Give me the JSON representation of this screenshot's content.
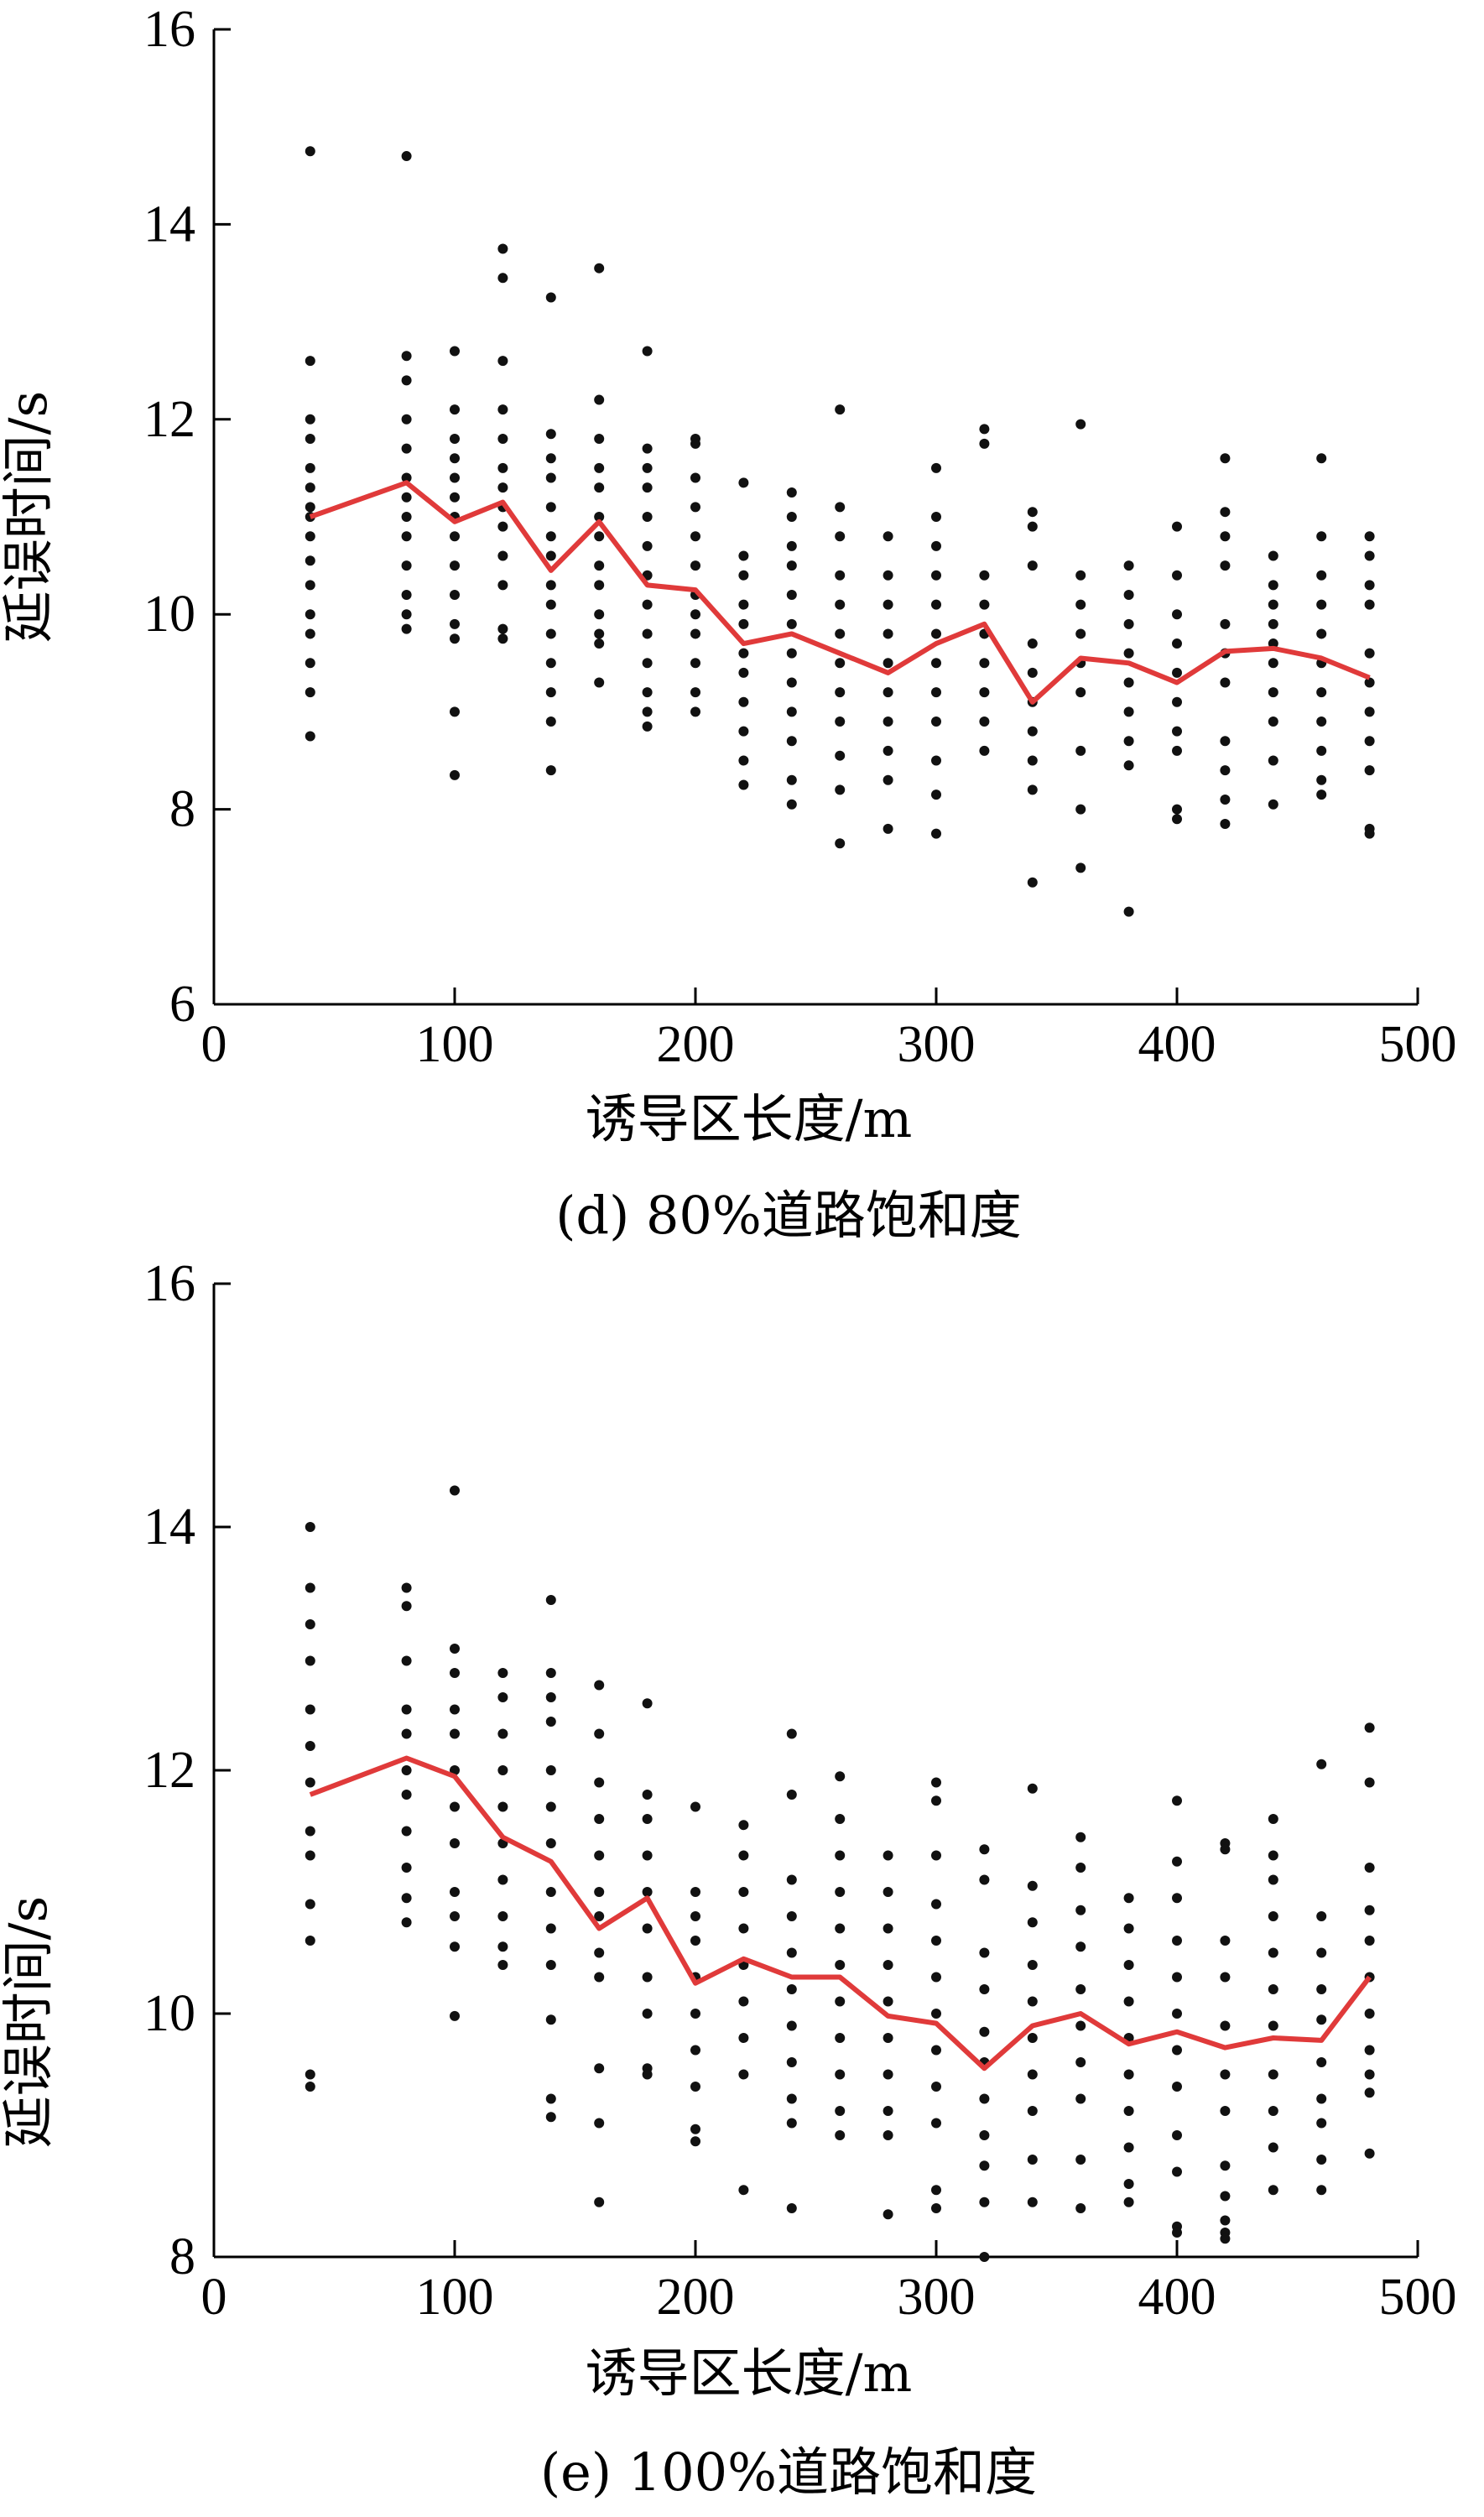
{
  "chart_data": [
    {
      "type": "scatter",
      "caption": "(d)  80%道路饱和度",
      "xlabel": "诱导区长度/m",
      "ylabel": "延误时间/s",
      "xlim": [
        0,
        500
      ],
      "ylim": [
        6,
        16
      ],
      "xticks": [
        0,
        100,
        200,
        300,
        400,
        500
      ],
      "yticks": [
        6,
        8,
        10,
        12,
        14,
        16
      ],
      "colors": {
        "points": "#111111",
        "line": "#e03a3a"
      },
      "line": {
        "x": [
          40,
          80,
          100,
          120,
          140,
          160,
          180,
          200,
          220,
          240,
          260,
          280,
          300,
          320,
          340,
          360,
          380,
          400,
          420,
          440,
          460,
          480
        ],
        "y": [
          11.0,
          11.35,
          10.95,
          11.15,
          10.45,
          10.95,
          10.3,
          10.25,
          9.7,
          9.8,
          9.6,
          9.4,
          9.7,
          9.9,
          9.1,
          9.55,
          9.5,
          9.3,
          9.62,
          9.65,
          9.55,
          9.35
        ]
      },
      "scatter": [
        {
          "x": 40,
          "y": [
            14.75,
            12.6,
            12.0,
            11.8,
            11.5,
            11.3,
            11.1,
            11.0,
            10.8,
            10.55,
            10.3,
            10.0,
            9.8,
            9.5,
            9.2,
            8.75
          ]
        },
        {
          "x": 80,
          "y": [
            14.7,
            12.65,
            12.4,
            12.0,
            11.7,
            11.4,
            11.2,
            11.0,
            10.8,
            10.5,
            10.2,
            10.0,
            9.85
          ]
        },
        {
          "x": 100,
          "y": [
            12.7,
            12.1,
            11.8,
            11.6,
            11.4,
            11.2,
            11.0,
            10.8,
            10.5,
            10.2,
            9.9,
            9.75,
            9.0,
            8.35
          ]
        },
        {
          "x": 120,
          "y": [
            13.75,
            13.45,
            12.6,
            12.1,
            11.8,
            11.5,
            11.3,
            11.1,
            10.9,
            10.6,
            10.3,
            9.85,
            9.75
          ]
        },
        {
          "x": 140,
          "y": [
            13.25,
            11.85,
            11.6,
            11.4,
            11.1,
            10.8,
            10.6,
            10.3,
            10.1,
            9.8,
            9.5,
            9.2,
            8.9,
            8.4
          ]
        },
        {
          "x": 160,
          "y": [
            13.55,
            12.2,
            11.8,
            11.5,
            11.3,
            11.0,
            10.8,
            10.5,
            10.3,
            10.0,
            9.8,
            9.7,
            9.3
          ]
        },
        {
          "x": 180,
          "y": [
            12.7,
            11.7,
            11.5,
            11.3,
            11.0,
            10.7,
            10.4,
            10.1,
            9.8,
            9.5,
            9.2,
            9.0,
            8.85
          ]
        },
        {
          "x": 200,
          "y": [
            11.8,
            11.75,
            11.4,
            11.1,
            10.8,
            10.5,
            10.2,
            10.0,
            9.8,
            9.5,
            9.2,
            9.0
          ]
        },
        {
          "x": 220,
          "y": [
            11.35,
            10.6,
            10.4,
            10.1,
            9.9,
            9.6,
            9.4,
            9.1,
            8.8,
            8.5,
            8.25
          ]
        },
        {
          "x": 240,
          "y": [
            11.25,
            11.0,
            10.7,
            10.5,
            10.2,
            9.9,
            9.6,
            9.3,
            9.0,
            8.7,
            8.3,
            8.05
          ]
        },
        {
          "x": 260,
          "y": [
            12.1,
            11.1,
            10.8,
            10.4,
            10.1,
            9.8,
            9.5,
            9.2,
            8.9,
            8.55,
            8.2,
            7.65
          ]
        },
        {
          "x": 280,
          "y": [
            10.8,
            10.4,
            10.1,
            9.8,
            9.5,
            9.2,
            8.9,
            8.6,
            8.3,
            7.8
          ]
        },
        {
          "x": 300,
          "y": [
            11.5,
            11.0,
            10.7,
            10.4,
            10.1,
            9.8,
            9.5,
            9.2,
            8.9,
            8.5,
            8.15,
            7.75
          ]
        },
        {
          "x": 320,
          "y": [
            11.9,
            11.75,
            10.4,
            10.1,
            9.8,
            9.5,
            9.2,
            8.9,
            8.6
          ]
        },
        {
          "x": 340,
          "y": [
            11.05,
            10.9,
            10.5,
            9.7,
            9.4,
            9.1,
            8.8,
            8.5,
            8.2,
            7.25
          ]
        },
        {
          "x": 360,
          "y": [
            11.95,
            10.4,
            10.1,
            9.8,
            9.5,
            9.2,
            8.6,
            8.0,
            7.4
          ]
        },
        {
          "x": 380,
          "y": [
            10.5,
            10.2,
            9.9,
            9.6,
            9.3,
            9.0,
            8.7,
            8.45,
            6.95
          ]
        },
        {
          "x": 400,
          "y": [
            10.9,
            10.4,
            10.0,
            9.7,
            9.4,
            9.1,
            8.8,
            8.6,
            8.0,
            7.9
          ]
        },
        {
          "x": 420,
          "y": [
            11.6,
            11.05,
            10.8,
            10.5,
            9.9,
            9.6,
            9.3,
            8.7,
            8.4,
            8.1,
            7.85
          ]
        },
        {
          "x": 440,
          "y": [
            10.6,
            10.3,
            10.1,
            9.9,
            9.7,
            9.5,
            9.2,
            8.9,
            8.5,
            8.05
          ]
        },
        {
          "x": 460,
          "y": [
            11.6,
            10.8,
            10.4,
            10.1,
            9.8,
            9.5,
            9.2,
            8.9,
            8.6,
            8.3,
            8.15
          ]
        },
        {
          "x": 480,
          "y": [
            10.8,
            10.6,
            10.3,
            10.1,
            9.6,
            9.3,
            9.0,
            8.7,
            8.4,
            7.8,
            7.75
          ]
        }
      ]
    },
    {
      "type": "scatter",
      "caption": "(e)  100%道路饱和度",
      "xlabel": "诱导区长度/m",
      "ylabel": "延误时间/s",
      "xlim": [
        0,
        500
      ],
      "ylim": [
        8,
        16
      ],
      "xticks": [
        0,
        100,
        200,
        300,
        400,
        500
      ],
      "yticks": [
        8,
        10,
        12,
        14,
        16
      ],
      "colors": {
        "points": "#111111",
        "line": "#e03a3a"
      },
      "line": {
        "x": [
          40,
          80,
          100,
          120,
          140,
          160,
          180,
          200,
          220,
          240,
          260,
          280,
          300,
          320,
          340,
          360,
          380,
          400,
          420,
          440,
          460,
          480
        ],
        "y": [
          11.8,
          12.1,
          11.95,
          11.45,
          11.25,
          10.7,
          10.95,
          10.25,
          10.45,
          10.3,
          10.3,
          9.98,
          9.92,
          9.55,
          9.9,
          10.0,
          9.75,
          9.85,
          9.72,
          9.8,
          9.78,
          10.3
        ]
      },
      "scatter": [
        {
          "x": 40,
          "y": [
            14.0,
            13.5,
            13.2,
            12.9,
            12.5,
            12.2,
            11.9,
            11.5,
            11.3,
            10.9,
            10.6,
            9.5,
            9.4
          ]
        },
        {
          "x": 80,
          "y": [
            13.5,
            13.35,
            12.9,
            12.5,
            12.3,
            12.0,
            11.8,
            11.5,
            11.2,
            10.95,
            10.75
          ]
        },
        {
          "x": 100,
          "y": [
            14.3,
            13.0,
            12.8,
            12.5,
            12.3,
            12.0,
            11.7,
            11.4,
            11.0,
            10.8,
            10.55,
            9.98
          ]
        },
        {
          "x": 120,
          "y": [
            12.8,
            12.6,
            12.3,
            12.0,
            11.7,
            11.4,
            11.1,
            10.8,
            10.55,
            10.4
          ]
        },
        {
          "x": 140,
          "y": [
            13.4,
            12.8,
            12.6,
            12.4,
            12.0,
            11.7,
            11.4,
            11.0,
            10.7,
            10.4,
            9.95,
            9.3,
            9.15
          ]
        },
        {
          "x": 160,
          "y": [
            12.7,
            12.3,
            11.9,
            11.6,
            11.3,
            11.0,
            10.8,
            10.5,
            10.3,
            9.55,
            9.1,
            8.45
          ]
        },
        {
          "x": 180,
          "y": [
            12.55,
            11.8,
            11.6,
            11.3,
            11.0,
            10.7,
            10.3,
            10.0,
            9.55,
            9.5
          ]
        },
        {
          "x": 200,
          "y": [
            11.7,
            11.0,
            10.8,
            10.6,
            10.3,
            10.0,
            9.7,
            9.4,
            9.05,
            8.95
          ]
        },
        {
          "x": 220,
          "y": [
            11.55,
            11.3,
            11.0,
            10.7,
            10.4,
            10.1,
            9.8,
            9.5,
            8.55
          ]
        },
        {
          "x": 240,
          "y": [
            12.3,
            11.8,
            11.1,
            10.8,
            10.5,
            10.2,
            9.9,
            9.6,
            9.3,
            9.1,
            8.4
          ]
        },
        {
          "x": 260,
          "y": [
            11.95,
            11.6,
            11.3,
            11.0,
            10.7,
            10.4,
            10.1,
            9.8,
            9.5,
            9.2,
            9.0
          ]
        },
        {
          "x": 280,
          "y": [
            11.3,
            11.0,
            10.7,
            10.4,
            10.1,
            9.8,
            9.5,
            9.2,
            9.0,
            8.35
          ]
        },
        {
          "x": 300,
          "y": [
            11.9,
            11.75,
            11.3,
            10.9,
            10.6,
            10.3,
            10.0,
            9.7,
            9.4,
            9.1,
            8.55,
            8.4
          ]
        },
        {
          "x": 320,
          "y": [
            11.35,
            11.1,
            10.5,
            10.2,
            9.85,
            9.6,
            9.3,
            9.0,
            8.75,
            8.45,
            8.0
          ]
        },
        {
          "x": 340,
          "y": [
            11.85,
            11.05,
            10.75,
            10.4,
            10.1,
            9.8,
            9.5,
            9.2,
            8.8,
            8.45
          ]
        },
        {
          "x": 360,
          "y": [
            11.45,
            11.2,
            10.85,
            10.55,
            10.2,
            9.9,
            9.6,
            9.3,
            8.8,
            8.4
          ]
        },
        {
          "x": 380,
          "y": [
            10.95,
            10.7,
            10.4,
            10.1,
            9.8,
            9.5,
            9.2,
            8.9,
            8.6,
            8.45
          ]
        },
        {
          "x": 400,
          "y": [
            11.75,
            11.25,
            10.95,
            10.6,
            10.3,
            10.0,
            9.7,
            9.4,
            9.0,
            8.7,
            8.25,
            8.2
          ]
        },
        {
          "x": 420,
          "y": [
            11.4,
            11.35,
            10.6,
            10.3,
            9.9,
            9.5,
            9.2,
            8.75,
            8.5,
            8.3,
            8.2,
            8.15
          ]
        },
        {
          "x": 440,
          "y": [
            11.6,
            11.3,
            11.1,
            10.8,
            10.5,
            10.2,
            9.9,
            9.5,
            9.2,
            8.9,
            8.55
          ]
        },
        {
          "x": 460,
          "y": [
            12.05,
            10.8,
            10.5,
            10.2,
            9.95,
            9.6,
            9.3,
            9.1,
            8.8,
            8.55
          ]
        },
        {
          "x": 480,
          "y": [
            12.35,
            11.9,
            11.2,
            10.85,
            10.6,
            10.3,
            10.0,
            9.7,
            9.5,
            9.35,
            8.85
          ]
        }
      ]
    }
  ]
}
